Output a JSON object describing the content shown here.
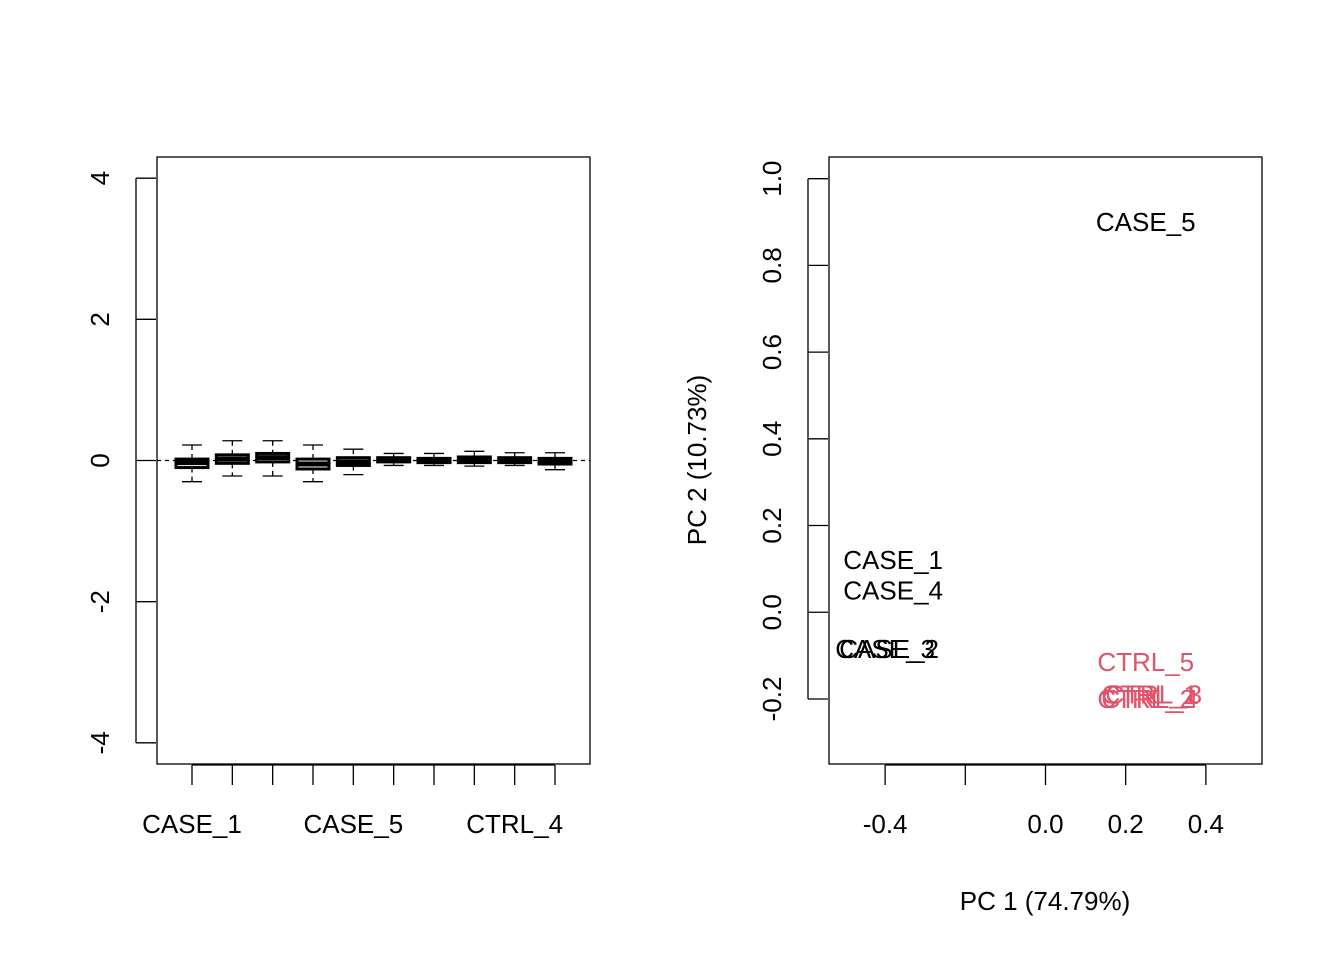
{
  "chart_data": [
    {
      "type": "box",
      "title": "",
      "xlabel": "",
      "ylabel": "",
      "ylim": [
        -4.3,
        4.3
      ],
      "yticks": [
        -4,
        -2,
        0,
        2,
        4
      ],
      "ytick_labels": [
        "-4",
        "-2",
        "0",
        "2",
        "4"
      ],
      "categories": [
        "CASE_1",
        "CASE_2",
        "CASE_3",
        "CASE_4",
        "CASE_5",
        "CTRL_1",
        "CTRL_2",
        "CTRL_3",
        "CTRL_4",
        "CTRL_5"
      ],
      "xtick_labels_shown": [
        "CASE_1",
        "CASE_5",
        "CTRL_4"
      ],
      "reference_line": 0,
      "boxes": [
        {
          "whisker_low": -0.3,
          "q1": -0.1,
          "median": -0.03,
          "q3": 0.02,
          "whisker_high": 0.22
        },
        {
          "whisker_low": -0.22,
          "q1": -0.04,
          "median": 0.02,
          "q3": 0.08,
          "whisker_high": 0.28
        },
        {
          "whisker_low": -0.22,
          "q1": -0.02,
          "median": 0.04,
          "q3": 0.1,
          "whisker_high": 0.28
        },
        {
          "whisker_low": -0.3,
          "q1": -0.12,
          "median": -0.05,
          "q3": 0.02,
          "whisker_high": 0.22
        },
        {
          "whisker_low": -0.2,
          "q1": -0.07,
          "median": -0.02,
          "q3": 0.04,
          "whisker_high": 0.16
        },
        {
          "whisker_low": -0.07,
          "q1": -0.02,
          "median": 0.01,
          "q3": 0.04,
          "whisker_high": 0.1
        },
        {
          "whisker_low": -0.07,
          "q1": -0.03,
          "median": 0.0,
          "q3": 0.03,
          "whisker_high": 0.1
        },
        {
          "whisker_low": -0.08,
          "q1": -0.03,
          "median": 0.01,
          "q3": 0.05,
          "whisker_high": 0.13
        },
        {
          "whisker_low": -0.07,
          "q1": -0.03,
          "median": 0.01,
          "q3": 0.04,
          "whisker_high": 0.11
        },
        {
          "whisker_low": -0.13,
          "q1": -0.05,
          "median": -0.01,
          "q3": 0.03,
          "whisker_high": 0.11
        }
      ]
    },
    {
      "type": "scatter",
      "title": "",
      "xlabel": "PC 1 (74.79%)",
      "ylabel": "PC 2 (10.73%)",
      "xlim": [
        -0.54,
        0.54
      ],
      "ylim": [
        -0.35,
        1.05
      ],
      "xticks": [
        -0.4,
        -0.2,
        0.0,
        0.2,
        0.4
      ],
      "xtick_labels": [
        "-0.4",
        "",
        "0.0",
        "0.2",
        "0.4"
      ],
      "yticks": [
        -0.2,
        0.0,
        0.2,
        0.4,
        0.6,
        0.8,
        1.0
      ],
      "ytick_labels": [
        "-0.2",
        "0.0",
        "0.2",
        "0.4",
        "0.6",
        "0.8",
        "1.0"
      ],
      "colors": {
        "case": "#000000",
        "ctrl": "#DF536B"
      },
      "points": [
        {
          "label": "CASE_5",
          "x": 0.25,
          "y": 0.9,
          "group": "case"
        },
        {
          "label": "CASE_1",
          "x": -0.38,
          "y": 0.12,
          "group": "case"
        },
        {
          "label": "CASE_4",
          "x": -0.38,
          "y": 0.05,
          "group": "case"
        },
        {
          "label": "CASE_2",
          "x": -0.39,
          "y": -0.085,
          "group": "case"
        },
        {
          "label": "CASE_3",
          "x": -0.4,
          "y": -0.085,
          "group": "case"
        },
        {
          "label": "CTRL_5",
          "x": 0.25,
          "y": -0.115,
          "group": "ctrl"
        },
        {
          "label": "CTRL_1",
          "x": 0.26,
          "y": -0.19,
          "group": "ctrl"
        },
        {
          "label": "CTRL_3",
          "x": 0.27,
          "y": -0.19,
          "group": "ctrl"
        },
        {
          "label": "CTRL_2",
          "x": 0.25,
          "y": -0.2,
          "group": "ctrl"
        },
        {
          "label": "CTRL_4",
          "x": 0.26,
          "y": -0.2,
          "group": "ctrl"
        }
      ]
    }
  ]
}
